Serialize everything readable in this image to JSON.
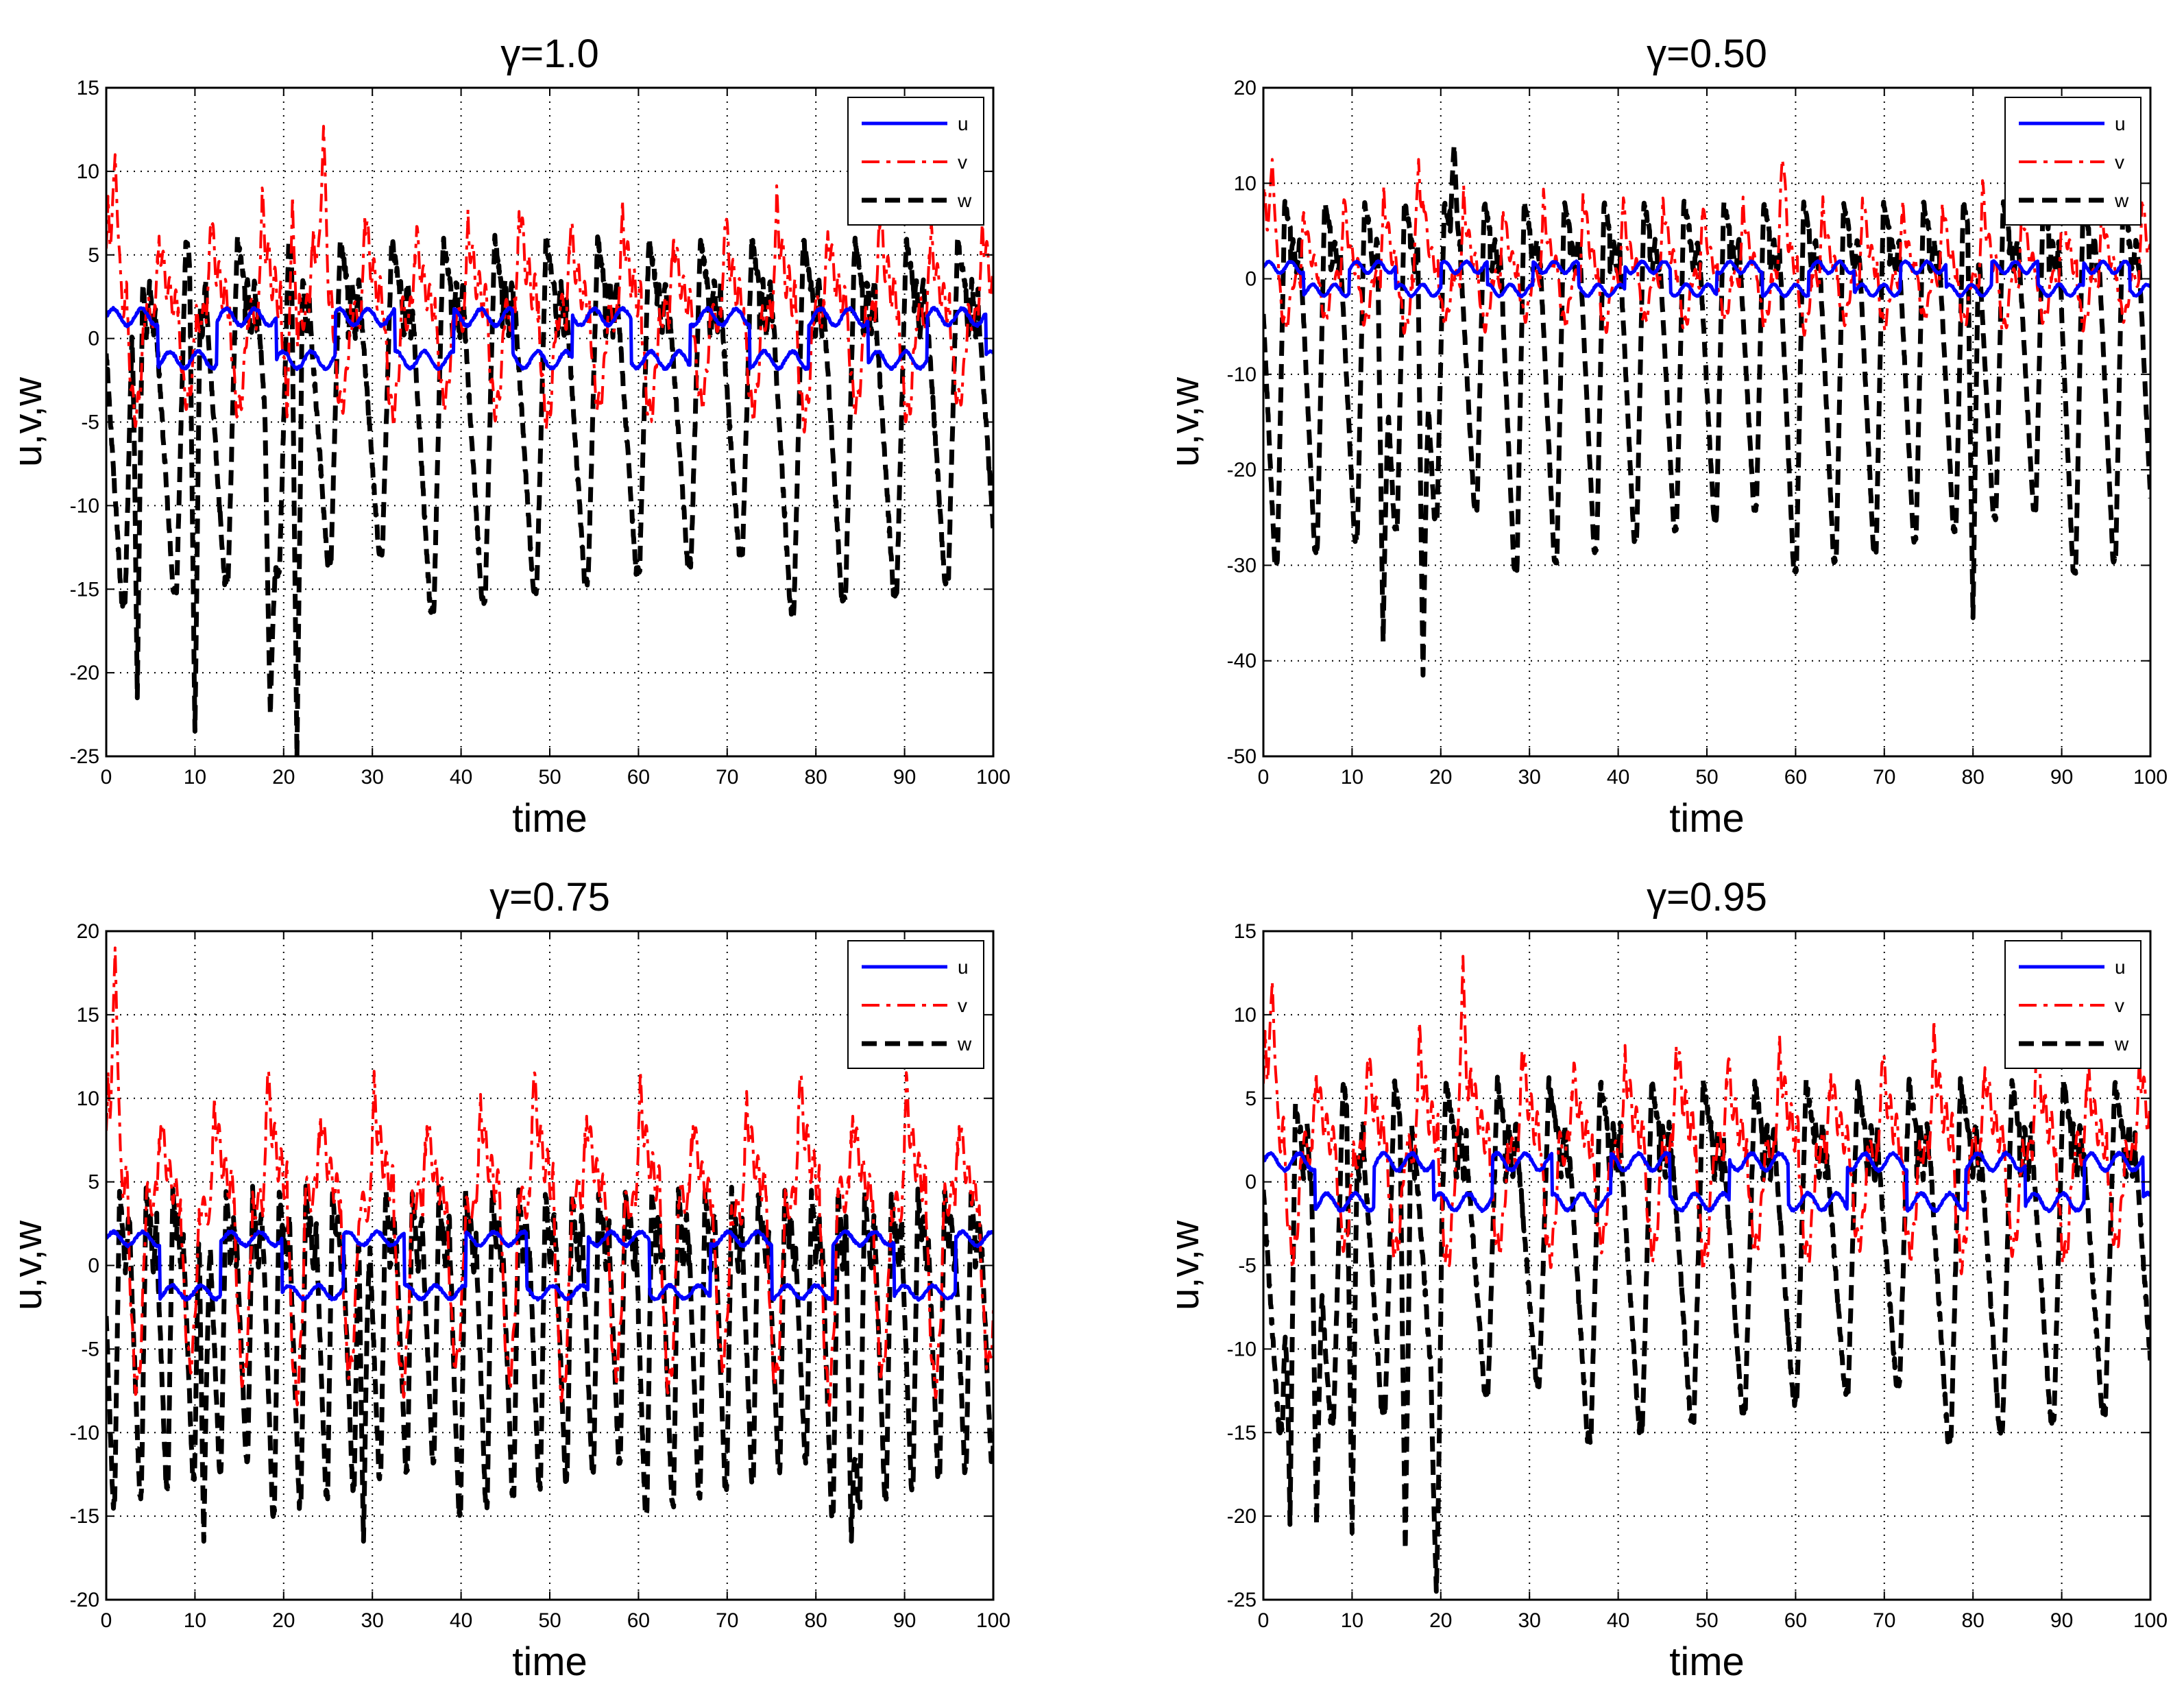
{
  "colors": {
    "u": "#0000ff",
    "v": "#ff0000",
    "w": "#000000",
    "grid": "#000000",
    "axes": "#000000"
  },
  "chart_data": [
    {
      "type": "line",
      "title": "γ=1.0",
      "xlabel": "time",
      "ylabel": "u,v,w",
      "xlim": [
        0,
        100
      ],
      "ylim": [
        -25,
        15
      ],
      "xticks": [
        0,
        10,
        20,
        30,
        40,
        50,
        60,
        70,
        80,
        90,
        100
      ],
      "yticks": [
        -25,
        -20,
        -15,
        -10,
        -5,
        0,
        5,
        10,
        15
      ],
      "grid": true,
      "legend": {
        "position": "top-right",
        "entries": [
          "u",
          "v",
          "w"
        ]
      },
      "series": [
        {
          "name": "u",
          "style": "solid",
          "osc": {
            "period": 5.8,
            "base": 0,
            "amp": 1.6,
            "amp2": 0.5
          }
        },
        {
          "name": "v",
          "style": "dashdot",
          "osc": {
            "period": 5.8,
            "peak": 7.5,
            "trough": -6,
            "rest": 1.5,
            "spikes": [
              [
                1,
                11
              ],
              [
                24.5,
                12.7
              ],
              [
                21,
                8.5
              ]
            ]
          }
        },
        {
          "name": "w",
          "style": "dashed",
          "osc": {
            "period": 5.8,
            "peak": 6,
            "trough": -16,
            "spikes": [
              [
                3.5,
                -21.5
              ],
              [
                10,
                -23.5
              ],
              [
                18.5,
                -22.5
              ],
              [
                21.5,
                -25
              ]
            ]
          }
        }
      ]
    },
    {
      "type": "line",
      "title": "γ=0.50",
      "xlabel": "time",
      "ylabel": "u,v,w",
      "xlim": [
        0,
        100
      ],
      "ylim": [
        -50,
        20
      ],
      "xticks": [
        0,
        10,
        20,
        30,
        40,
        50,
        60,
        70,
        80,
        90,
        100
      ],
      "yticks": [
        -50,
        -40,
        -30,
        -20,
        -10,
        0,
        10,
        20
      ],
      "grid": true,
      "legend": {
        "position": "top-right",
        "entries": [
          "u",
          "v",
          "w"
        ]
      },
      "series": [
        {
          "name": "u",
          "style": "solid",
          "osc": {
            "period": 4.5,
            "base": 0,
            "amp": 1.5,
            "amp2": 0.6
          }
        },
        {
          "name": "v",
          "style": "dashdot",
          "osc": {
            "period": 4.5,
            "peak": 9,
            "trough": -6,
            "rest": 0,
            "spikes": [
              [
                1,
                12.5
              ],
              [
                17.5,
                12.5
              ],
              [
                58.5,
                12.5
              ]
            ]
          }
        },
        {
          "name": "w",
          "style": "dashed",
          "osc": {
            "period": 4.5,
            "peak": 8,
            "trough": -30,
            "spikes": [
              [
                13.5,
                -38
              ],
              [
                18,
                -41.5
              ],
              [
                21.5,
                14
              ],
              [
                80,
                -35.5
              ]
            ]
          }
        }
      ]
    },
    {
      "type": "line",
      "title": "γ=0.75",
      "xlabel": "time",
      "ylabel": "u,v,w",
      "xlim": [
        0,
        100
      ],
      "ylim": [
        -20,
        20
      ],
      "xticks": [
        0,
        10,
        20,
        30,
        40,
        50,
        60,
        70,
        80,
        90,
        100
      ],
      "yticks": [
        -20,
        -15,
        -10,
        -5,
        0,
        5,
        10,
        15,
        20
      ],
      "grid": true,
      "legend": {
        "position": "top-right",
        "entries": [
          "u",
          "v",
          "w"
        ]
      },
      "series": [
        {
          "name": "u",
          "style": "solid",
          "osc": {
            "period": 6.0,
            "base": 0,
            "amp": 2.0,
            "amp2": 0.4
          }
        },
        {
          "name": "v",
          "style": "dashdot",
          "osc": {
            "period": 6.0,
            "peak": 10.5,
            "trough": -10,
            "rest": 4,
            "spikes": [
              [
                1,
                19
              ]
            ]
          }
        },
        {
          "name": "w",
          "style": "dashed",
          "osc": {
            "period": 3.0,
            "peak": 4.5,
            "trough": -14.5,
            "spikes": [
              [
                11,
                -16.5
              ],
              [
                29,
                -16.5
              ],
              [
                84,
                -16.5
              ]
            ]
          }
        }
      ]
    },
    {
      "type": "line",
      "title": "γ=0.95",
      "xlabel": "time",
      "ylabel": "u,v,w",
      "xlim": [
        0,
        100
      ],
      "ylim": [
        -25,
        15
      ],
      "xticks": [
        0,
        10,
        20,
        30,
        40,
        50,
        60,
        70,
        80,
        90,
        100
      ],
      "yticks": [
        -25,
        -20,
        -15,
        -10,
        -5,
        0,
        5,
        10,
        15
      ],
      "grid": true,
      "legend": {
        "position": "top-right",
        "entries": [
          "u",
          "v",
          "w"
        ]
      },
      "series": [
        {
          "name": "u",
          "style": "solid",
          "osc": {
            "period": 5.8,
            "base": 0,
            "amp": 1.5,
            "amp2": 0.5
          }
        },
        {
          "name": "v",
          "style": "dashdot",
          "osc": {
            "period": 5.8,
            "peak": 8,
            "trough": -6,
            "rest": 2,
            "spikes": [
              [
                1,
                12
              ],
              [
                22.5,
                13.5
              ]
            ]
          }
        },
        {
          "name": "w",
          "style": "dashed",
          "osc": {
            "period": 5.8,
            "peak": 6,
            "trough": -15,
            "spikes": [
              [
                3,
                -20.5
              ],
              [
                6,
                -20.5
              ],
              [
                10,
                -21
              ],
              [
                16,
                -22
              ],
              [
                19.5,
                -24.5
              ]
            ]
          }
        }
      ]
    }
  ]
}
